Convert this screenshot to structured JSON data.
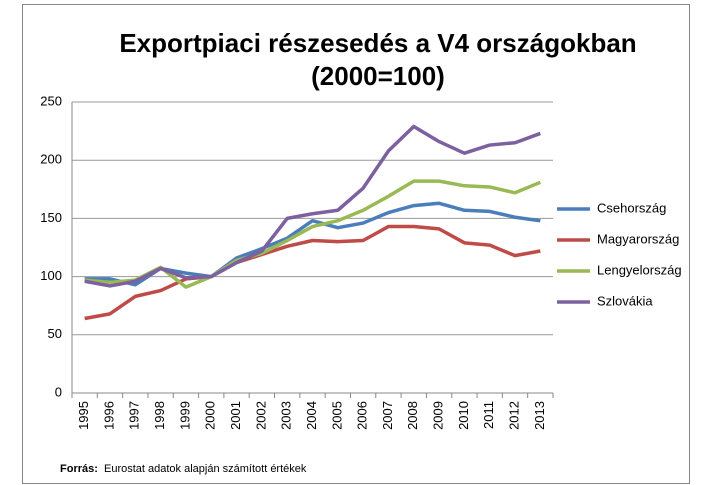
{
  "chart_data": {
    "type": "line",
    "title": "Exportpiaci részesedés a V4 országokban",
    "subtitle": "(2000=100)",
    "categories": [
      "1995",
      "1996",
      "1997",
      "1998",
      "1999",
      "2000",
      "2001",
      "2002",
      "2003",
      "2004",
      "2005",
      "2006",
      "2007",
      "2008",
      "2009",
      "2010",
      "2011",
      "2012",
      "2013"
    ],
    "series": [
      {
        "name": "Csehország",
        "color": "#4a7ebb",
        "values": [
          98,
          98,
          93,
          107,
          103,
          100,
          116,
          124,
          133,
          148,
          142,
          146,
          155,
          161,
          163,
          157,
          156,
          151,
          148
        ]
      },
      {
        "name": "Magyarország",
        "color": "#be4b48",
        "values": [
          64,
          68,
          83,
          88,
          98,
          100,
          112,
          119,
          126,
          131,
          130,
          131,
          143,
          143,
          141,
          129,
          127,
          118,
          122
        ]
      },
      {
        "name": "Lengyelország",
        "color": "#98b954",
        "values": [
          97,
          95,
          97,
          108,
          91,
          100,
          114,
          120,
          131,
          143,
          148,
          157,
          169,
          182,
          182,
          178,
          177,
          172,
          181
        ]
      },
      {
        "name": "Szlovákia",
        "color": "#7d60a0",
        "values": [
          96,
          92,
          96,
          107,
          99,
          100,
          112,
          122,
          150,
          154,
          157,
          176,
          208,
          229,
          216,
          206,
          213,
          215,
          223
        ]
      }
    ],
    "ylim": [
      0,
      250
    ],
    "yticks": [
      0,
      50,
      100,
      150,
      200,
      250
    ],
    "grid": true,
    "legend": "right",
    "source_label": "Forrás:",
    "source_text": "Eurostat adatok alapján számított értékek"
  }
}
